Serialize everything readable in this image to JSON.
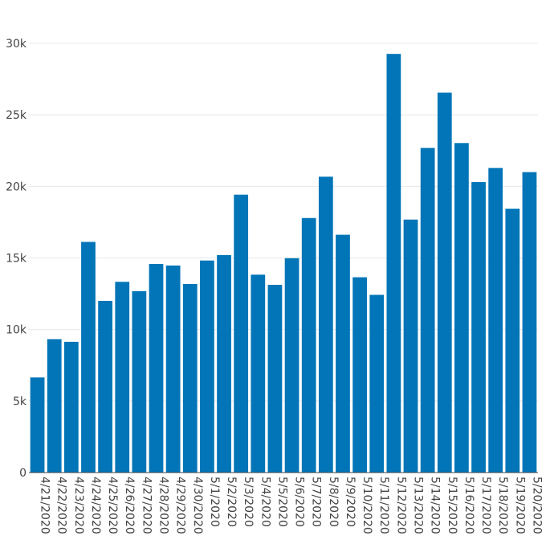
{
  "chart_data": {
    "type": "bar",
    "title": "",
    "xlabel": "",
    "ylabel": "",
    "categories": [
      "4/21/2020",
      "4/22/2020",
      "4/23/2020",
      "4/24/2020",
      "4/25/2020",
      "4/26/2020",
      "4/27/2020",
      "4/28/2020",
      "4/29/2020",
      "4/30/2020",
      "5/1/2020",
      "5/2/2020",
      "5/3/2020",
      "5/4/2020",
      "5/5/2020",
      "5/6/2020",
      "5/7/2020",
      "5/8/2020",
      "5/9/2020",
      "5/10/2020",
      "5/11/2020",
      "5/12/2020",
      "5/13/2020",
      "5/14/2020",
      "5/15/2020",
      "5/16/2020",
      "5/17/2020",
      "5/18/2020",
      "5/19/2020",
      "5/20/2020"
    ],
    "values": [
      6650,
      9320,
      9140,
      16120,
      12000,
      13330,
      12680,
      14580,
      14470,
      13180,
      14820,
      15200,
      19420,
      13830,
      13120,
      14980,
      17790,
      20680,
      16620,
      13650,
      12420,
      29260,
      17680,
      22690,
      26550,
      23030,
      20300,
      21290,
      18440,
      21000
    ],
    "ylim": [
      0,
      30000
    ],
    "yticks": [
      0,
      5000,
      10000,
      15000,
      20000,
      25000,
      30000
    ],
    "ytick_labels": [
      "0",
      "5k",
      "10k",
      "15k",
      "20k",
      "25k",
      "30k"
    ],
    "bar_color": "#0175b7",
    "grid": true,
    "legend": "none"
  }
}
